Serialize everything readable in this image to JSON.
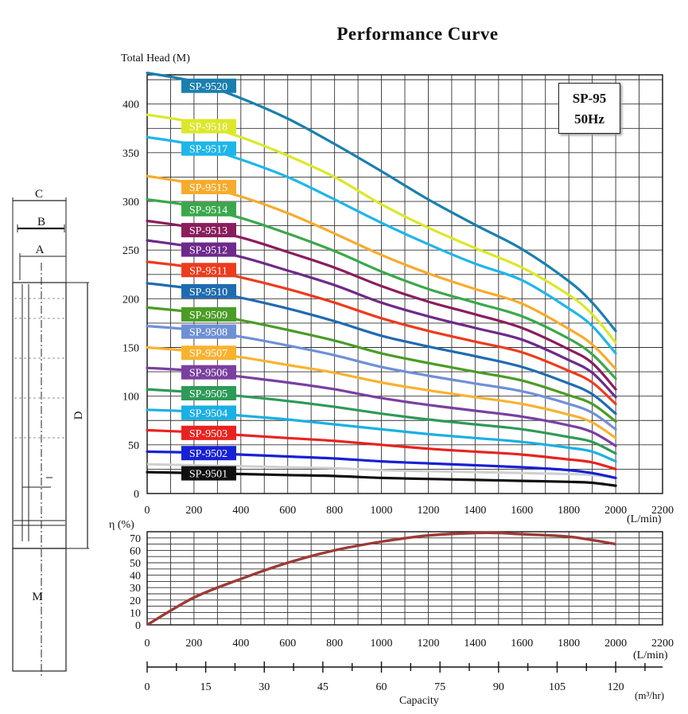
{
  "title": "Performance Curve",
  "badge": {
    "model": "SP-95",
    "freq": "50Hz"
  },
  "units": {
    "head": "Total Head (M)",
    "efficiency": "η (%)",
    "flow_lmin_1": "(L/min)",
    "flow_lmin_2": "(L/min)",
    "flow_m3hr": "(m³/hr)",
    "capacity": "Capacity"
  },
  "dimension_labels": {
    "c": "C",
    "b": "B",
    "a": "A",
    "d": "D",
    "m": "M"
  },
  "chart_data": [
    {
      "type": "line",
      "title": "Performance Curve",
      "xlabel": "(L/min)",
      "ylabel": "Total Head (M)",
      "xlim": [
        0,
        2200
      ],
      "ylim": [
        0,
        430
      ],
      "x_ticks": [
        0,
        200,
        400,
        600,
        800,
        1000,
        1200,
        1400,
        1600,
        1800,
        2000,
        2200
      ],
      "y_ticks": [
        0,
        50,
        100,
        150,
        200,
        250,
        300,
        350,
        400
      ],
      "x": [
        0,
        200,
        400,
        600,
        800,
        1000,
        1200,
        1400,
        1600,
        1800,
        1900,
        2000
      ],
      "grid": true,
      "series": [
        {
          "name": "SP-9520",
          "color": "#1a7fae",
          "values": [
            432,
            423,
            406,
            385,
            359,
            331,
            302,
            276,
            251,
            218,
            196,
            167
          ]
        },
        {
          "name": "SP-9518",
          "color": "#dbe82a",
          "values": [
            389,
            381,
            366,
            347,
            325,
            297,
            273,
            252,
            232,
            204,
            184,
            155
          ]
        },
        {
          "name": "SP-9517",
          "color": "#1eb6e8",
          "values": [
            366,
            358,
            343,
            325,
            302,
            278,
            256,
            236,
            219,
            190,
            172,
            144
          ]
        },
        {
          "name": "SP-9515",
          "color": "#f7ab2c",
          "values": [
            326,
            318,
            305,
            288,
            267,
            245,
            226,
            210,
            195,
            169,
            153,
            128
          ]
        },
        {
          "name": "SP-9514",
          "color": "#3aa84a",
          "values": [
            302,
            295,
            283,
            267,
            249,
            228,
            210,
            196,
            182,
            159,
            143,
            118
          ]
        },
        {
          "name": "SP-9513",
          "color": "#8a1d5c",
          "values": [
            280,
            273,
            263,
            248,
            232,
            213,
            197,
            184,
            170,
            148,
            134,
            107
          ]
        },
        {
          "name": "SP-9512",
          "color": "#6d2a8a",
          "values": [
            260,
            253,
            243,
            229,
            214,
            196,
            182,
            170,
            158,
            137,
            124,
            99
          ]
        },
        {
          "name": "SP-9511",
          "color": "#ed3b1d",
          "values": [
            238,
            232,
            222,
            210,
            196,
            180,
            167,
            156,
            145,
            126,
            114,
            92
          ]
        },
        {
          "name": "SP-9510",
          "color": "#1f6bb1",
          "values": [
            216,
            210,
            201,
            190,
            177,
            162,
            151,
            141,
            130,
            113,
            102,
            82
          ]
        },
        {
          "name": "SP-9509",
          "color": "#4a9c25",
          "values": [
            191,
            186,
            178,
            168,
            157,
            144,
            134,
            125,
            116,
            101,
            92,
            74
          ]
        },
        {
          "name": "SP-9508",
          "color": "#6f90d6",
          "values": [
            172,
            168,
            161,
            152,
            142,
            130,
            121,
            113,
            105,
            92,
            83,
            66
          ]
        },
        {
          "name": "SP-9507",
          "color": "#f8b230",
          "values": [
            150,
            146,
            140,
            132,
            124,
            114,
            106,
            99,
            92,
            81,
            73,
            57
          ]
        },
        {
          "name": "SP-9506",
          "color": "#7a3fa0",
          "values": [
            129,
            126,
            120,
            114,
            107,
            98,
            91,
            85,
            79,
            70,
            63,
            49
          ]
        },
        {
          "name": "SP-9505",
          "color": "#2d9a57",
          "values": [
            107,
            104,
            100,
            95,
            89,
            82,
            76,
            71,
            66,
            58,
            53,
            41
          ]
        },
        {
          "name": "SP-9504",
          "color": "#1ab0e3",
          "values": [
            86,
            84,
            80,
            76,
            71,
            66,
            61,
            57,
            53,
            47,
            43,
            33
          ]
        },
        {
          "name": "SP-9503",
          "color": "#e8231f",
          "values": [
            65,
            63,
            60,
            57,
            54,
            50,
            46,
            43,
            40,
            35,
            32,
            25
          ]
        },
        {
          "name": "SP-9502",
          "color": "#1820d4",
          "values": [
            43,
            42,
            40,
            38,
            36,
            33,
            31,
            29,
            27,
            24,
            21,
            16
          ]
        },
        {
          "name": "SP-9501",
          "color": "#101010",
          "values": [
            22,
            21,
            20,
            19,
            18,
            16,
            15,
            14,
            13,
            12,
            11,
            8
          ]
        }
      ]
    },
    {
      "type": "line",
      "ylabel": "η (%)",
      "xlabel": "(L/min)",
      "xlim": [
        0,
        2200
      ],
      "ylim": [
        0,
        75
      ],
      "x_ticks": [
        0,
        200,
        400,
        600,
        800,
        1000,
        1200,
        1400,
        1600,
        1800,
        2000,
        2200
      ],
      "y_ticks": [
        0,
        10,
        20,
        30,
        40,
        50,
        60,
        70
      ],
      "grid": true,
      "series": [
        {
          "color": "#9e3a35",
          "x": [
            0,
            200,
            400,
            600,
            800,
            1000,
            1200,
            1400,
            1500,
            1600,
            1800,
            2000
          ],
          "values": [
            0,
            22,
            37,
            50,
            60,
            67,
            72,
            74,
            74,
            73,
            71,
            65
          ]
        }
      ]
    },
    {
      "type": "axis",
      "xlabel": "Capacity",
      "unit": "(m³/hr)",
      "xlim": [
        0,
        132
      ],
      "x_ticks": [
        0,
        15,
        30,
        45,
        60,
        75,
        90,
        105,
        120
      ]
    }
  ]
}
